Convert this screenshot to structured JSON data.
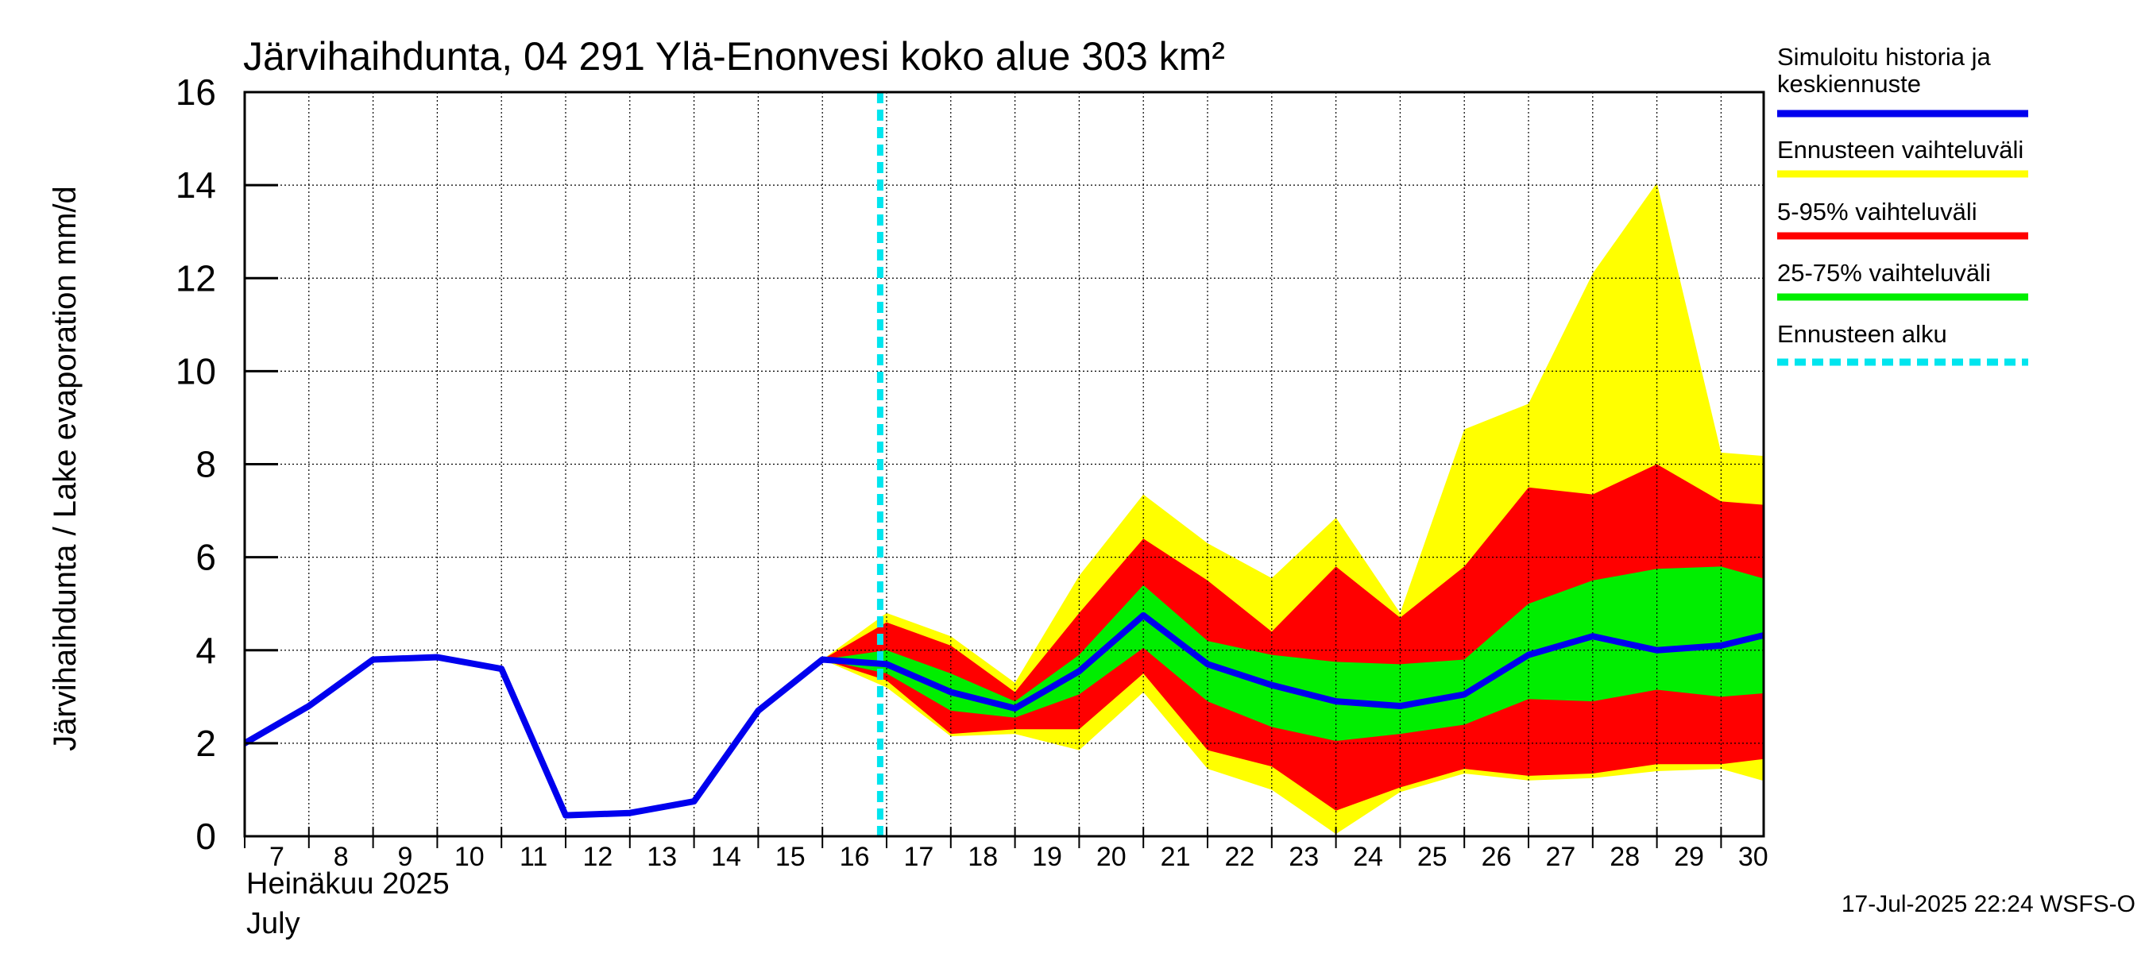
{
  "chart_data": {
    "type": "area",
    "title": "Järvihaihdunta, 04 291 Ylä-Enonvesi koko alue 303 km²",
    "ylabel": "Järvihaihdunta / Lake evaporation   mm/d",
    "ylim": [
      0,
      16
    ],
    "yticks": [
      "0",
      "2",
      "4",
      "6",
      "8",
      "10",
      "12",
      "14",
      "16"
    ],
    "xlim": [
      7,
      30.9
    ],
    "xticks": [
      "7",
      "8",
      "9",
      "10",
      "11",
      "12",
      "13",
      "14",
      "15",
      "16",
      "17",
      "18",
      "19",
      "20",
      "21",
      "22",
      "23",
      "24",
      "25",
      "26",
      "27",
      "28",
      "29",
      "30"
    ],
    "month_label_fi": "Heinäkuu  2025",
    "month_label_en": "July",
    "grid": true,
    "legend_position": "right",
    "forecast_start_x": 16.9,
    "legend": [
      {
        "label": "Simuloitu historia ja keskiennuste",
        "color": "#0000ee",
        "style": "solid"
      },
      {
        "label": "Ennusteen vaihteluväli",
        "color": "#ffff00",
        "style": "solid"
      },
      {
        "label": "5-95% vaihteluväli",
        "color": "#ff0000",
        "style": "solid"
      },
      {
        "label": "25-75% vaihteluväli",
        "color": "#00ee00",
        "style": "solid"
      },
      {
        "label": "Ennusteen alku",
        "color": "#00e5ee",
        "style": "dashed"
      }
    ],
    "series": [
      {
        "name": "Simuloitu historia ja keskiennuste",
        "x": [
          7,
          8,
          9,
          10,
          11,
          12,
          13,
          14,
          15,
          16,
          17,
          18,
          19,
          20,
          21,
          22,
          23,
          24,
          25,
          26,
          27,
          28,
          29,
          30,
          30.9
        ],
        "values": [
          2.0,
          2.8,
          3.8,
          3.85,
          3.6,
          0.45,
          0.5,
          0.75,
          2.7,
          3.8,
          3.7,
          3.1,
          2.75,
          3.55,
          4.75,
          3.7,
          3.25,
          2.9,
          2.8,
          3.05,
          3.9,
          4.3,
          4.0,
          4.1,
          4.4
        ]
      }
    ],
    "bands": [
      {
        "name": "Ennusteen vaihteluväli",
        "color": "#ffff00",
        "x": [
          16,
          17,
          18,
          19,
          20,
          21,
          22,
          23,
          24,
          25,
          26,
          27,
          28,
          29,
          30,
          30.9
        ],
        "upper": [
          3.8,
          4.8,
          4.3,
          3.3,
          5.6,
          7.35,
          6.3,
          5.55,
          6.85,
          4.8,
          8.75,
          9.3,
          12.1,
          14.05,
          8.25,
          8.15
        ],
        "lower": [
          3.8,
          3.2,
          2.15,
          2.2,
          1.85,
          3.1,
          1.45,
          1.0,
          0.05,
          0.95,
          1.35,
          1.2,
          1.25,
          1.4,
          1.45,
          1.1
        ]
      },
      {
        "name": "5-95% vaihteluväli",
        "color": "#ff0000",
        "x": [
          16,
          17,
          18,
          19,
          20,
          21,
          22,
          23,
          24,
          25,
          26,
          27,
          28,
          29,
          30,
          30.9
        ],
        "upper": [
          3.8,
          4.6,
          4.1,
          3.1,
          4.8,
          6.4,
          5.5,
          4.4,
          5.8,
          4.7,
          5.8,
          7.5,
          7.35,
          8.0,
          7.2,
          7.1
        ],
        "lower": [
          3.8,
          3.35,
          2.2,
          2.3,
          2.3,
          3.5,
          1.85,
          1.5,
          0.55,
          1.05,
          1.45,
          1.3,
          1.35,
          1.55,
          1.55,
          1.7
        ]
      },
      {
        "name": "25-75% vaihteluväli",
        "color": "#00ee00",
        "x": [
          16,
          17,
          18,
          19,
          20,
          21,
          22,
          23,
          24,
          25,
          26,
          27,
          28,
          29,
          30,
          30.9
        ],
        "upper": [
          3.8,
          4.0,
          3.5,
          2.9,
          3.9,
          5.4,
          4.2,
          3.9,
          3.75,
          3.7,
          3.8,
          5.0,
          5.5,
          5.75,
          5.8,
          5.45
        ],
        "lower": [
          3.8,
          3.5,
          2.7,
          2.55,
          3.05,
          4.05,
          2.9,
          2.35,
          2.05,
          2.2,
          2.4,
          2.95,
          2.9,
          3.15,
          3.0,
          3.1
        ]
      }
    ],
    "footer": "17-Jul-2025 22:24 WSFS-O"
  }
}
